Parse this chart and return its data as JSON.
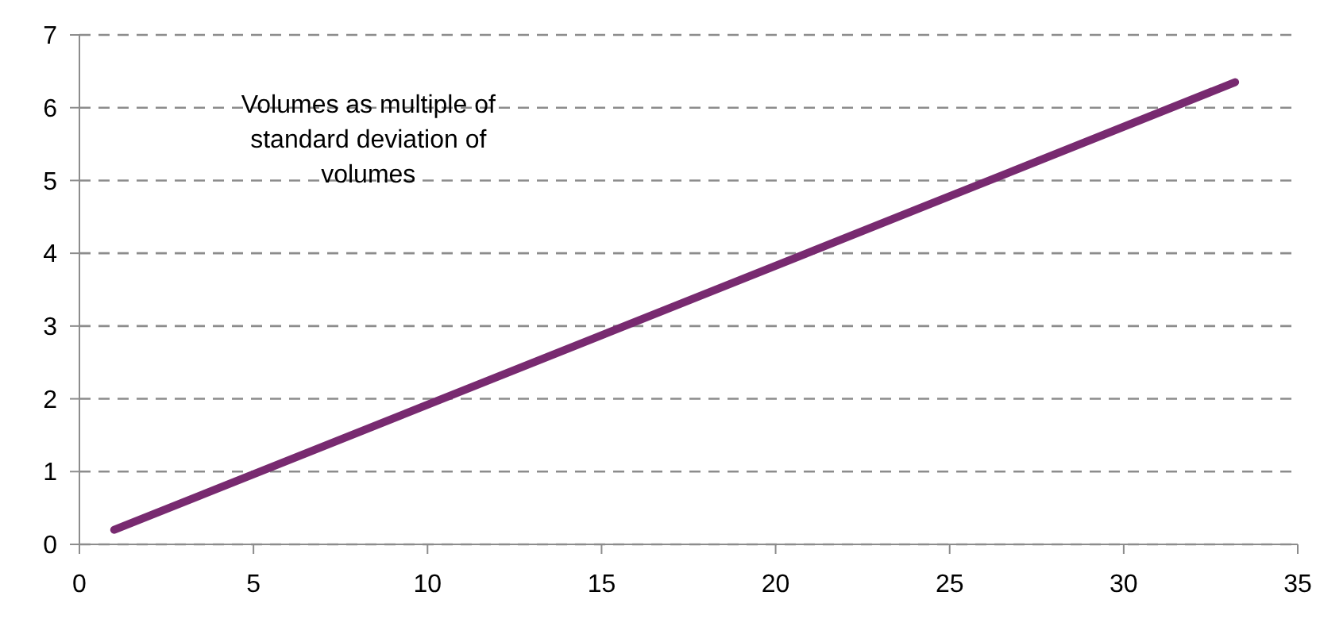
{
  "chart_data": {
    "type": "line",
    "x": [
      1,
      33.2
    ],
    "series": [
      {
        "color": "#782a70",
        "values": [
          0.2,
          6.35
        ]
      }
    ],
    "xlim": [
      0,
      35
    ],
    "xticks": [
      0,
      5,
      10,
      15,
      20,
      25,
      30,
      35
    ],
    "ylim": [
      0,
      7
    ],
    "yticks": [
      0,
      1,
      2,
      3,
      4,
      5,
      6,
      7
    ],
    "grid": "y",
    "marker": "none",
    "line_style": "solid",
    "annotations": [
      "Volumes as multiple of standard deviation of volumes"
    ]
  }
}
